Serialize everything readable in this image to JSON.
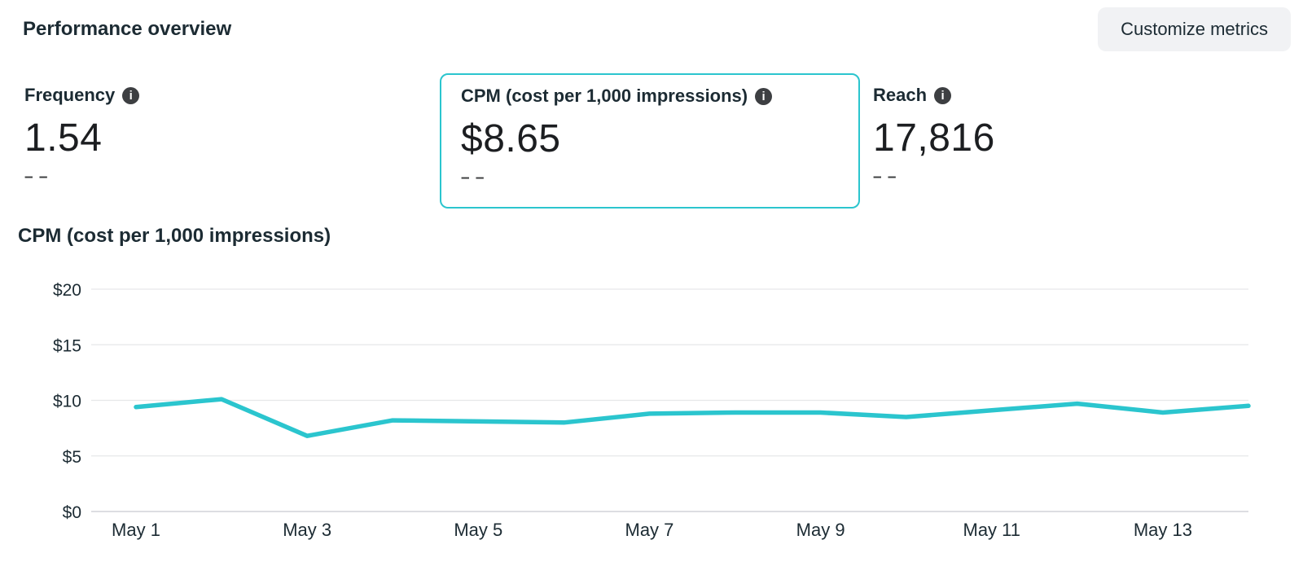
{
  "header": {
    "title": "Performance overview",
    "customize_button_label": "Customize metrics"
  },
  "icons": {
    "info_glyph": "i"
  },
  "metrics": [
    {
      "label": "Frequency",
      "value": "1.54",
      "delta": "– –",
      "selected": false
    },
    {
      "label": "CPM (cost per 1,000 impressions)",
      "value": "$8.65",
      "delta": "– –",
      "selected": true
    },
    {
      "label": "Reach",
      "value": "17,816",
      "delta": "– –",
      "selected": false
    }
  ],
  "chart_section": {
    "title": "CPM (cost per 1,000 impressions)"
  },
  "chart_data": {
    "type": "line",
    "title": "CPM (cost per 1,000 impressions)",
    "x": [
      "May 1",
      "May 2",
      "May 3",
      "May 4",
      "May 5",
      "May 6",
      "May 7",
      "May 8",
      "May 9",
      "May 10",
      "May 11",
      "May 12",
      "May 13",
      "May 14"
    ],
    "values": [
      9.4,
      10.1,
      6.8,
      8.2,
      8.1,
      8.0,
      8.8,
      8.9,
      8.9,
      8.5,
      9.1,
      9.7,
      8.9,
      9.5
    ],
    "ylabel": "",
    "xlabel": "",
    "ylim": [
      0,
      20
    ],
    "yticks": [
      0,
      5,
      10,
      15,
      20
    ],
    "ytick_labels": [
      "$0",
      "$5",
      "$10",
      "$15",
      "$20"
    ],
    "xtick_every": 2,
    "grid": true,
    "legend": "none",
    "line_color": "#2BC5CE",
    "grid_color": "#e6e7e9",
    "axis_color": "#d2d4d8",
    "tick_label_color": "#1c2b33"
  },
  "colors": {
    "accent_teal": "#2BC5CE",
    "text_primary": "#1c2b33",
    "button_bg": "#f1f2f4"
  }
}
